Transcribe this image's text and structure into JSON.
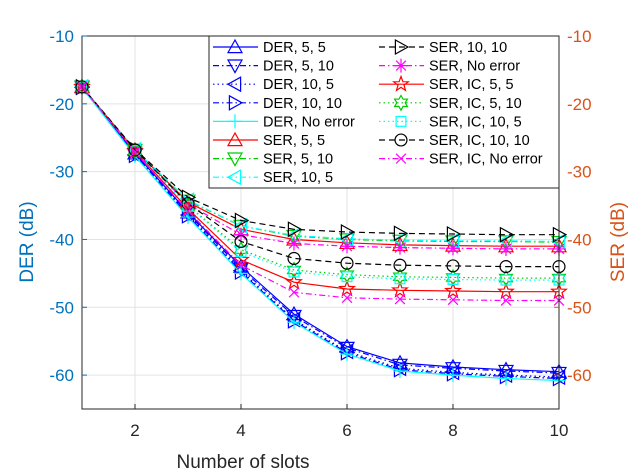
{
  "chart_data": {
    "type": "line",
    "xlabel": "Number of slots",
    "ylabel_left": "DER (dB)",
    "ylabel_right": "SER (dB)",
    "xlim": [
      1,
      10
    ],
    "ylim": [
      -65,
      -10
    ],
    "x_ticks": [
      2,
      4,
      6,
      8,
      10
    ],
    "y_ticks_left": [
      -10,
      -20,
      -30,
      -40,
      -50,
      -60
    ],
    "y_ticks_right": [
      -10,
      -20,
      -30,
      -40,
      -50,
      -60
    ],
    "grid": true,
    "legend_position": "top-right",
    "colors": {
      "left_axis": "#0072BD",
      "right_axis": "#D95319"
    },
    "x": [
      1,
      2,
      3,
      4,
      5,
      6,
      7,
      8,
      9,
      10
    ],
    "series": [
      {
        "name": "DER, 5, 5",
        "color": "#0000FF",
        "dash": "solid",
        "marker": "triangle-up",
        "values": [
          -17.5,
          -27.3,
          -36.0,
          -44.0,
          -51.0,
          -55.8,
          -58.2,
          -58.8,
          -59.2,
          -59.5
        ]
      },
      {
        "name": "DER, 5, 10",
        "color": "#0000FF",
        "dash": "dashdot",
        "marker": "triangle-down",
        "values": [
          -17.5,
          -27.4,
          -36.2,
          -44.3,
          -51.3,
          -56.0,
          -58.5,
          -59.0,
          -59.4,
          -59.7
        ]
      },
      {
        "name": "DER, 10, 5",
        "color": "#0000FF",
        "dash": "dotted",
        "marker": "triangle-left",
        "values": [
          -17.6,
          -27.5,
          -36.4,
          -44.6,
          -51.8,
          -56.5,
          -59.0,
          -59.6,
          -60.0,
          -60.3
        ]
      },
      {
        "name": "DER, 10, 10",
        "color": "#0000FF",
        "dash": "dashdot",
        "marker": "triangle-right",
        "values": [
          -17.6,
          -27.6,
          -36.5,
          -44.8,
          -52.0,
          -56.7,
          -59.2,
          -59.8,
          -60.2,
          -60.5
        ]
      },
      {
        "name": "DER, No error",
        "color": "#00FFFF",
        "dash": "solid",
        "marker": "plus",
        "values": [
          -17.6,
          -27.7,
          -36.7,
          -45.0,
          -52.2,
          -56.9,
          -59.4,
          -60.0,
          -60.5,
          -60.8
        ]
      },
      {
        "name": "SER, 5, 5",
        "color": "#FF0000",
        "dash": "solid",
        "marker": "triangle-up",
        "values": [
          -17.5,
          -26.8,
          -34.5,
          -38.5,
          -40.0,
          -40.5,
          -40.8,
          -40.9,
          -41.0,
          -41.0
        ]
      },
      {
        "name": "SER, 5, 10",
        "color": "#00CC00",
        "dash": "dashdot",
        "marker": "triangle-down",
        "values": [
          -17.5,
          -26.8,
          -34.3,
          -38.0,
          -39.5,
          -40.0,
          -40.2,
          -40.3,
          -40.3,
          -40.4
        ]
      },
      {
        "name": "SER, 10, 5",
        "color": "#00FFFF",
        "dash": "dashdot",
        "marker": "triangle-left",
        "values": [
          -17.5,
          -26.8,
          -34.2,
          -38.0,
          -39.4,
          -39.9,
          -40.1,
          -40.2,
          -40.2,
          -40.3
        ]
      },
      {
        "name": "SER, 10, 10",
        "color": "#000000",
        "dash": "dashed",
        "marker": "triangle-right",
        "values": [
          -17.5,
          -26.7,
          -33.8,
          -37.2,
          -38.5,
          -38.9,
          -39.1,
          -39.2,
          -39.3,
          -39.3
        ]
      },
      {
        "name": "SER, No error",
        "color": "#FF00FF",
        "dash": "dashdot",
        "marker": "asterisk",
        "values": [
          -17.5,
          -26.9,
          -34.8,
          -39.3,
          -40.6,
          -41.0,
          -41.2,
          -41.3,
          -41.4,
          -41.4
        ]
      },
      {
        "name": "SER, IC, 5, 5",
        "color": "#FF0000",
        "dash": "solid",
        "marker": "pentagram",
        "values": [
          -17.5,
          -27.0,
          -35.5,
          -43.0,
          -46.3,
          -47.3,
          -47.5,
          -47.6,
          -47.7,
          -47.7
        ]
      },
      {
        "name": "SER, IC, 5, 10",
        "color": "#00CC00",
        "dash": "dotted",
        "marker": "hexagram",
        "values": [
          -17.5,
          -26.9,
          -35.0,
          -41.5,
          -44.5,
          -45.2,
          -45.5,
          -45.6,
          -45.7,
          -45.7
        ]
      },
      {
        "name": "SER, IC, 10, 5",
        "color": "#00FFFF",
        "dash": "dotted",
        "marker": "square",
        "values": [
          -17.5,
          -26.9,
          -35.1,
          -41.8,
          -44.8,
          -45.5,
          -45.8,
          -45.9,
          -46.0,
          -46.0
        ]
      },
      {
        "name": "SER, IC, 10, 10",
        "color": "#000000",
        "dash": "dashed",
        "marker": "circle",
        "values": [
          -17.5,
          -26.8,
          -34.7,
          -40.3,
          -42.8,
          -43.5,
          -43.8,
          -43.9,
          -44.0,
          -44.0
        ]
      },
      {
        "name": "SER, IC, No error",
        "color": "#FF00FF",
        "dash": "dashdot",
        "marker": "x",
        "values": [
          -17.5,
          -27.1,
          -35.8,
          -43.8,
          -47.8,
          -48.6,
          -48.8,
          -48.9,
          -49.0,
          -49.0
        ]
      }
    ]
  }
}
